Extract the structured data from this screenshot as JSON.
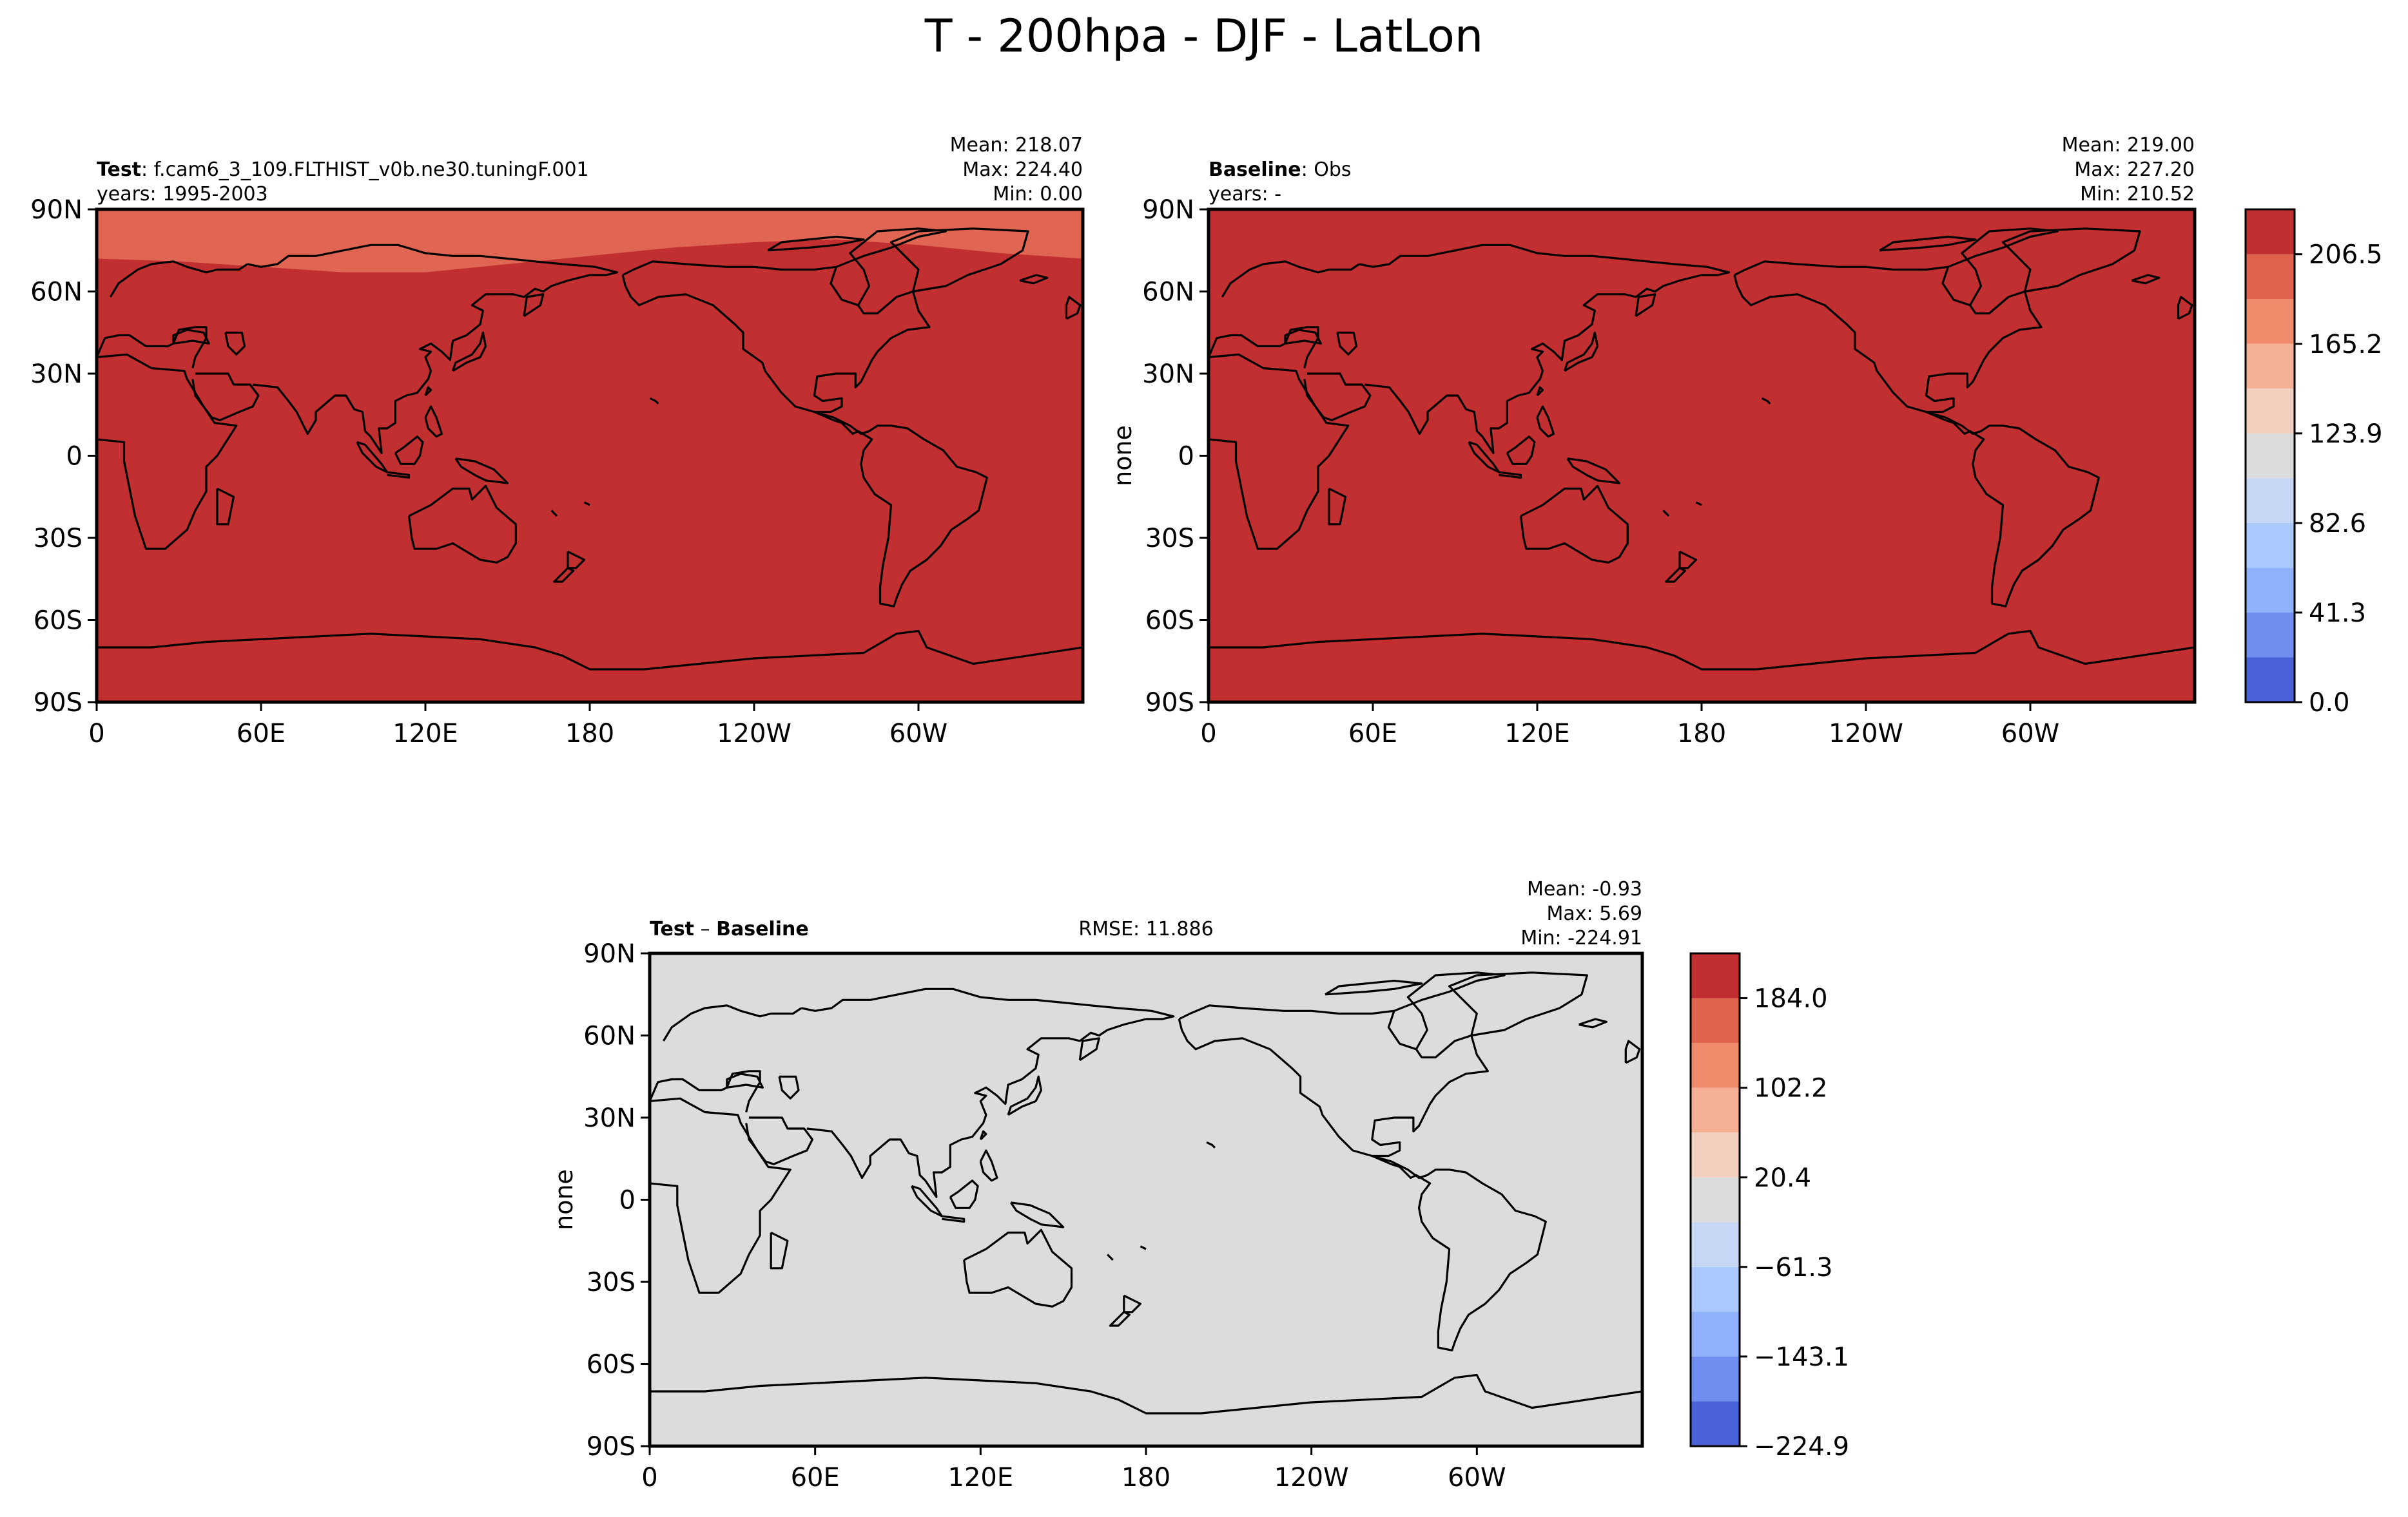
{
  "figure": {
    "title": "T - 200hpa - DJF - LatLon"
  },
  "continents_icon": "world-coastlines",
  "chart_data": [
    {
      "type": "heatmap",
      "panel": "test",
      "label_bold": "Test",
      "label_rest": ": f.cam6_3_109.FLTHIST_v0b.ne30.tuningF.001",
      "years": "years: 1995-2003",
      "stats": {
        "mean": "Mean: 218.07",
        "max": "Max: 224.40",
        "min": "Min:  0.00"
      },
      "ylabel": "",
      "x_ticks": [
        "0",
        "60E",
        "120E",
        "180",
        "120W",
        "60W"
      ],
      "x_tick_values": [
        0,
        60,
        120,
        180,
        240,
        300
      ],
      "y_ticks": [
        "90N",
        "60N",
        "30N",
        "0",
        "30S",
        "60S",
        "90S"
      ],
      "y_tick_values": [
        90,
        60,
        30,
        0,
        -30,
        -60,
        -90
      ],
      "xlim": [
        0,
        360
      ],
      "ylim": [
        -90,
        90
      ],
      "fill_color": "#c22f31",
      "polar_band_color": "#e06552",
      "polar_band_boundary": [
        [
          0,
          72
        ],
        [
          30,
          71
        ],
        [
          60,
          69
        ],
        [
          90,
          67
        ],
        [
          120,
          67
        ],
        [
          150,
          70
        ],
        [
          180,
          73
        ],
        [
          210,
          76
        ],
        [
          240,
          78
        ],
        [
          270,
          79
        ],
        [
          300,
          77
        ],
        [
          330,
          74
        ],
        [
          360,
          72
        ]
      ]
    },
    {
      "type": "heatmap",
      "panel": "baseline",
      "label_bold": "Baseline",
      "label_rest": ": Obs",
      "years": "years: -",
      "stats": {
        "mean": "Mean: 219.00",
        "max": "Max: 227.20",
        "min": "Min: 210.52"
      },
      "ylabel": "none",
      "x_ticks": [
        "0",
        "60E",
        "120E",
        "180",
        "120W",
        "60W"
      ],
      "x_tick_values": [
        0,
        60,
        120,
        180,
        240,
        300
      ],
      "y_ticks": [
        "90N",
        "60N",
        "30N",
        "0",
        "30S",
        "60S",
        "90S"
      ],
      "y_tick_values": [
        90,
        60,
        30,
        0,
        -30,
        -60,
        -90
      ],
      "xlim": [
        0,
        360
      ],
      "ylim": [
        -90,
        90
      ],
      "fill_color": "#c22f31",
      "colorbar": {
        "levels": [
          0,
          20.65,
          41.3,
          61.95,
          82.6,
          103.25,
          123.9,
          144.55,
          165.2,
          185.85,
          206.5,
          227.2
        ],
        "tick_values": [
          0,
          41.3,
          82.6,
          123.9,
          165.2,
          206.5
        ],
        "tick_labels": [
          "0.0",
          "41.3",
          "82.6",
          "123.9",
          "165.2",
          "206.5"
        ],
        "colors": [
          "#4a62d8",
          "#6e8ef0",
          "#8fb0fb",
          "#a9c8fc",
          "#c6d7f5",
          "#dcdcdc",
          "#f2cfbf",
          "#f6b194",
          "#ef8b6b",
          "#e0634e",
          "#c22f31"
        ]
      }
    },
    {
      "type": "heatmap",
      "panel": "difference",
      "label_bold_a": "Test",
      "label_dash": " – ",
      "label_bold_b": "Baseline",
      "rmse": "RMSE: 11.886",
      "stats": {
        "mean": "Mean: -0.93",
        "max": "Max:  5.69",
        "min": "Min: -224.91"
      },
      "ylabel": "none",
      "x_ticks": [
        "0",
        "60E",
        "120E",
        "180",
        "120W",
        "60W"
      ],
      "x_tick_values": [
        0,
        60,
        120,
        180,
        240,
        300
      ],
      "y_ticks": [
        "90N",
        "60N",
        "30N",
        "0",
        "30S",
        "60S",
        "90S"
      ],
      "y_tick_values": [
        90,
        60,
        30,
        0,
        -30,
        -60,
        -90
      ],
      "xlim": [
        0,
        360
      ],
      "ylim": [
        -90,
        90
      ],
      "fill_color": "#dcdcdc",
      "colorbar": {
        "levels": [
          -224.9,
          -184.0,
          -143.1,
          -102.2,
          -61.3,
          -20.4,
          20.4,
          61.3,
          102.2,
          143.1,
          184.0,
          224.9
        ],
        "tick_values": [
          -224.9,
          -143.1,
          -61.3,
          20.4,
          102.2,
          184.0
        ],
        "tick_labels": [
          "−224.9",
          "−143.1",
          "−61.3",
          "20.4",
          "102.2",
          "184.0"
        ],
        "colors": [
          "#4a62d8",
          "#6e8ef0",
          "#8fb0fb",
          "#a9c8fc",
          "#c6d7f5",
          "#dcdcdc",
          "#f2cfbf",
          "#f6b194",
          "#ef8b6b",
          "#e0634e",
          "#c22f31"
        ]
      }
    }
  ]
}
